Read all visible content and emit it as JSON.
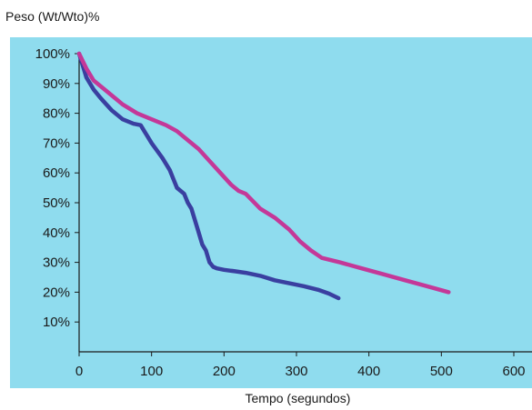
{
  "chart_data": {
    "type": "line",
    "ylabel": "Peso (Wt/Wto)%",
    "xlabel": "Tempo (segundos)",
    "xlim": [
      0,
      600
    ],
    "ylim": [
      0,
      100
    ],
    "x_ticks": [
      "0",
      "100",
      "200",
      "300",
      "400",
      "500",
      "600"
    ],
    "y_ticks": [
      "10%",
      "20%",
      "30%",
      "40%",
      "50%",
      "60%",
      "70%",
      "80%",
      "90%",
      "100%"
    ],
    "grid": false,
    "colors": {
      "background": "#8fdcee",
      "series_1": "#3a3fa0",
      "series_2": "#c43898"
    },
    "series": [
      {
        "color": "#3a3fa0",
        "x": [
          0,
          5,
          10,
          20,
          30,
          45,
          60,
          75,
          85,
          90,
          95,
          100,
          115,
          125,
          130,
          135,
          140,
          145,
          150,
          155,
          160,
          165,
          170,
          175,
          180,
          185,
          190,
          200,
          215,
          230,
          250,
          270,
          290,
          310,
          330,
          345,
          358
        ],
        "y": [
          100,
          96,
          92,
          88,
          85,
          81,
          78,
          76.5,
          76,
          74,
          72,
          70,
          65,
          61,
          58,
          55,
          54,
          53,
          50,
          48,
          44,
          40,
          36,
          34,
          30,
          28.5,
          28,
          27.5,
          27,
          26.5,
          25.5,
          24,
          23,
          22,
          20.8,
          19.5,
          18
        ]
      },
      {
        "color": "#c43898",
        "x": [
          0,
          10,
          20,
          40,
          60,
          80,
          100,
          120,
          135,
          150,
          165,
          180,
          195,
          210,
          220,
          230,
          250,
          270,
          290,
          305,
          320,
          335,
          360,
          390,
          420,
          450,
          480,
          510
        ],
        "y": [
          100,
          95,
          91,
          87,
          83,
          80,
          78,
          76,
          74,
          71,
          68,
          64,
          60,
          56,
          54,
          53,
          48,
          45,
          41,
          37,
          34,
          31.5,
          30,
          28,
          26,
          24,
          22,
          20
        ]
      }
    ]
  }
}
